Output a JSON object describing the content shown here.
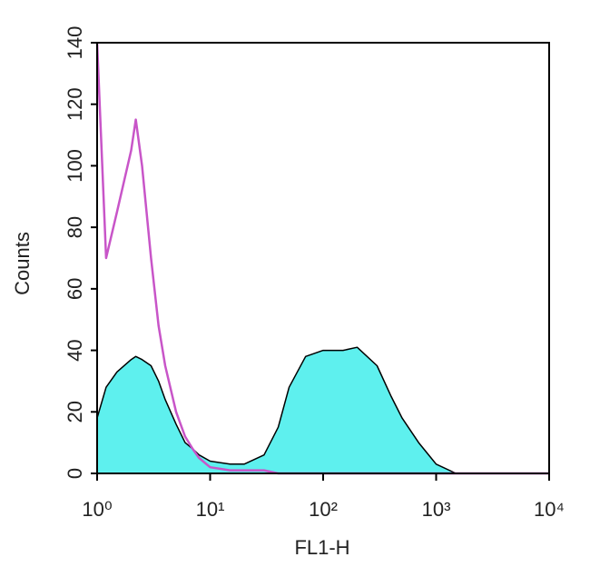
{
  "chart_data": {
    "type": "histogram_overlay",
    "xlabel": "FL1-H",
    "ylabel": "Counts",
    "log_x": true,
    "xlim": [
      1,
      10000
    ],
    "xticks": [
      {
        "value": 1,
        "label": "10⁰"
      },
      {
        "value": 10,
        "label": "10¹"
      },
      {
        "value": 100,
        "label": "10²"
      },
      {
        "value": 1000,
        "label": "10³"
      },
      {
        "value": 10000,
        "label": "10⁴"
      }
    ],
    "ylim": [
      0,
      140
    ],
    "yticks": [
      0,
      20,
      40,
      60,
      80,
      100,
      120,
      140
    ],
    "x": [
      1,
      1.2,
      1.5,
      2,
      2.2,
      2.5,
      3,
      3.5,
      4,
      5,
      6,
      7,
      8,
      10,
      15,
      20,
      30,
      40,
      50,
      70,
      100,
      150,
      200,
      300,
      400,
      500,
      700,
      1000,
      1500,
      2000,
      5000,
      10000
    ],
    "series": [
      {
        "color": "#5ef0ee",
        "edgecolor": "#000000",
        "filled": true,
        "values": [
          18,
          28,
          33,
          37,
          38,
          37,
          35,
          30,
          24,
          16,
          10,
          8,
          6,
          4,
          3,
          3,
          6,
          15,
          28,
          38,
          40,
          40,
          41,
          35,
          25,
          18,
          10,
          3,
          0,
          0,
          0,
          0
        ]
      },
      {
        "color": "#c855c8",
        "filled": false,
        "values": [
          140,
          70,
          85,
          105,
          115,
          100,
          70,
          48,
          35,
          20,
          12,
          8,
          5,
          2,
          1,
          1,
          1,
          0,
          0,
          0,
          0,
          0,
          0,
          0,
          0,
          0,
          0,
          0,
          0,
          0,
          0,
          0
        ]
      }
    ]
  }
}
